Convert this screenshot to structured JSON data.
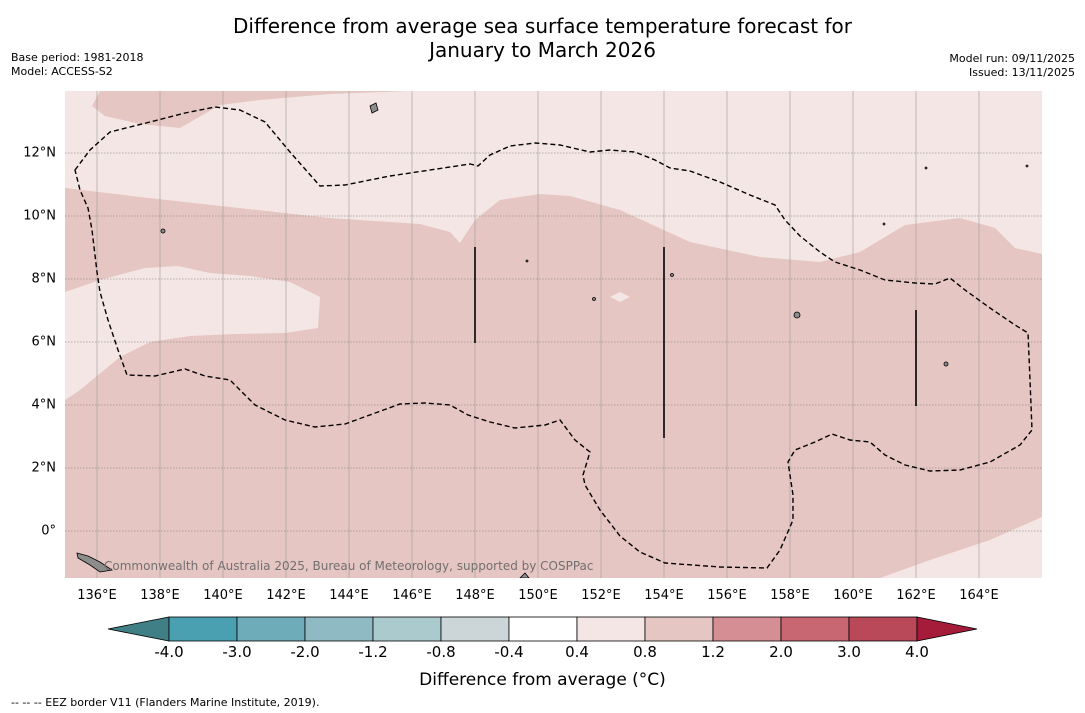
{
  "title": {
    "line1": "Difference from average sea surface temperature forecast for",
    "line2": "January to March 2026"
  },
  "meta": {
    "base_period": "Base period: 1981-2018",
    "model": "Model: ACCESS-S2",
    "model_run": "Model run: 09/11/2025",
    "issued": "Issued: 13/11/2025"
  },
  "map": {
    "lat_labels": [
      "12°N",
      "10°N",
      "8°N",
      "6°N",
      "4°N",
      "2°N",
      "0°"
    ],
    "lon_labels": [
      "136°E",
      "138°E",
      "140°E",
      "142°E",
      "144°E",
      "146°E",
      "148°E",
      "150°E",
      "152°E",
      "154°E",
      "156°E",
      "158°E",
      "160°E",
      "162°E",
      "164°E"
    ],
    "copyright": "Commonwealth of Australia 2025, Bureau of Meteorology, supported by COSPPac",
    "colors": {
      "light_anomaly": "#f4e6e4",
      "warm_anomaly": "#e6c6c2",
      "land": "#8c8c8c"
    }
  },
  "colorbar": {
    "title": "Difference from average (°C)",
    "ticks": [
      "-4.0",
      "-3.0",
      "-2.0",
      "-1.2",
      "-0.8",
      "-0.4",
      "0.4",
      "0.8",
      "1.2",
      "2.0",
      "3.0",
      "4.0"
    ],
    "colors": [
      "#4a9fb0",
      "#6eacb9",
      "#8fbac3",
      "#aacacd",
      "#ccd6d8",
      "#ffffff",
      "#f4e6e4",
      "#e6c6c2",
      "#d58e94",
      "#c86672",
      "#b94858"
    ],
    "extend_low_color": "#3f7f85",
    "extend_high_color": "#a51c3a"
  },
  "footnote": "-- -- -- EEZ border V11 (Flanders Marine Institute, 2019)."
}
